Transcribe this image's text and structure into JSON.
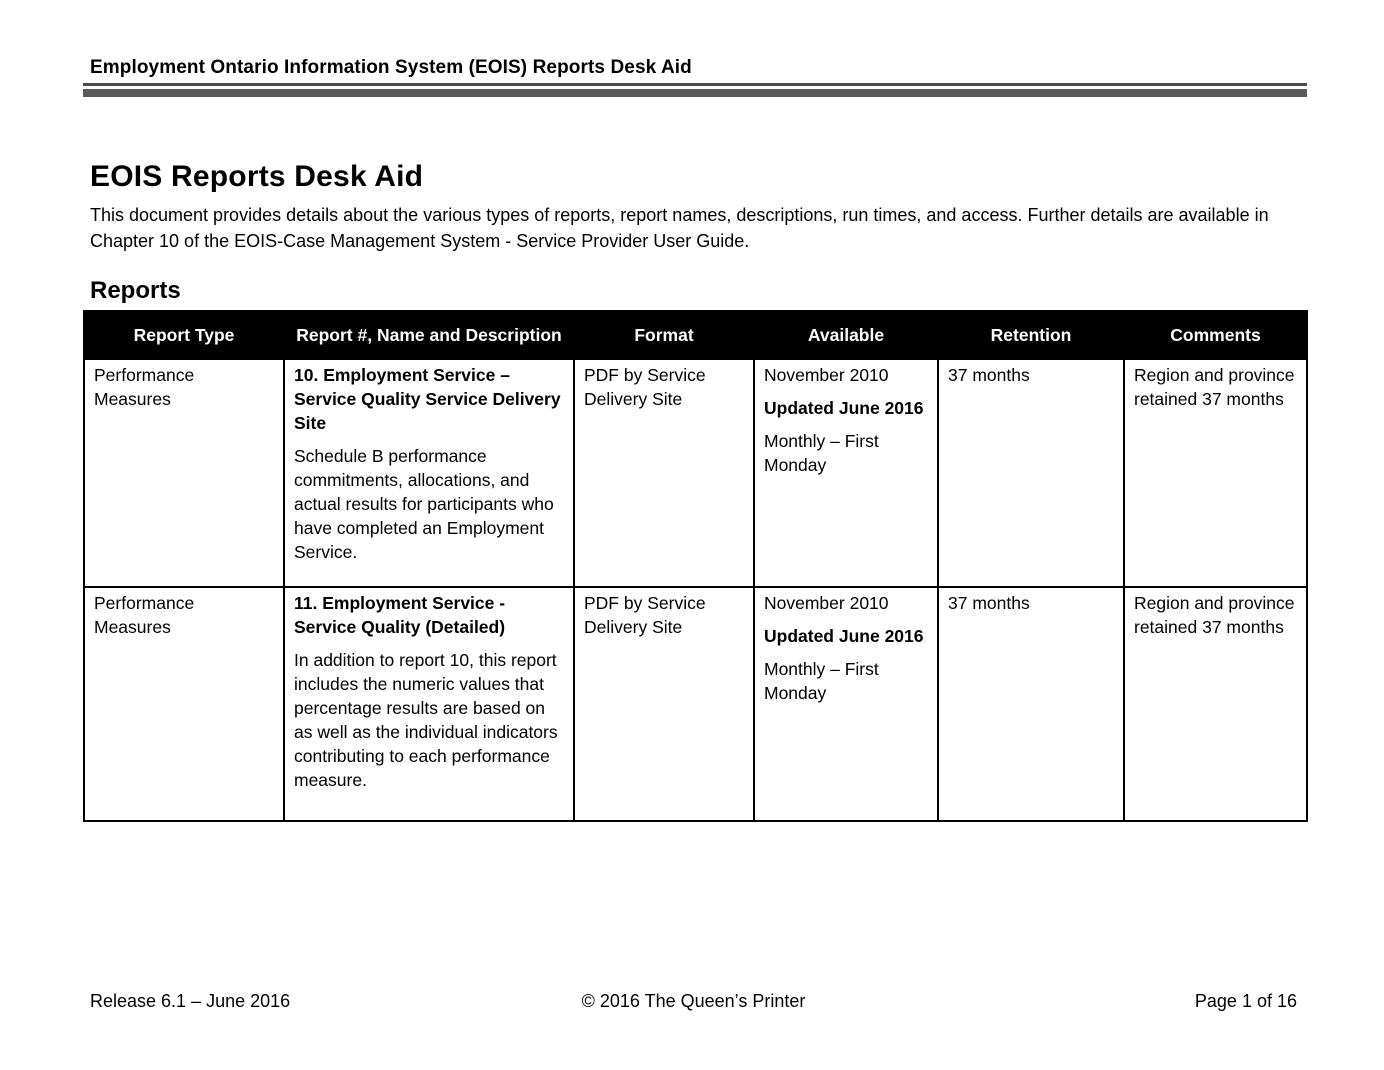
{
  "page_header": {
    "title": "Employment Ontario Information System (EOIS) Reports Desk Aid"
  },
  "document": {
    "title": "EOIS Reports Desk Aid",
    "intro": "This document provides details about the various types of reports, report names, descriptions, run times, and access. Further details are available in Chapter 10 of the EOIS-Case Management System - Service Provider User Guide.",
    "section_heading": "Reports"
  },
  "table": {
    "headers": [
      "Report Type",
      "Report #, Name and Description",
      "Format",
      "Available",
      "Retention",
      "Comments"
    ],
    "rows": [
      {
        "report_type": "Performance Measures",
        "title": "10. Employment Service – Service Quality Service Delivery Site",
        "description": "Schedule B performance commitments, allocations, and actual results for participants who have completed an Employment Service.",
        "format": "PDF by Service Delivery Site",
        "available_initial": "November 2010",
        "available_updated": "Updated June 2016",
        "available_frequency": "Monthly – First Monday",
        "retention": "37 months",
        "comments": "Region and province retained 37 months"
      },
      {
        "report_type": "Performance Measures",
        "title": "11. Employment Service - Service Quality (Detailed)",
        "description": "In addition to report 10, this report includes the numeric values that percentage results are based on as well as the individual indicators contributing to each performance measure.",
        "format": "PDF by Service Delivery Site",
        "available_initial": "November 2010",
        "available_updated": "Updated June 2016",
        "available_frequency": "Monthly – First Monday",
        "retention": "37 months",
        "comments": "Region and province retained 37 months"
      }
    ]
  },
  "footer": {
    "left": "Release 6.1 – June 2016",
    "center": "© 2016 The Queen’s Printer",
    "right": "Page 1 of 16"
  },
  "colors": {
    "table_header_bg": "#000000",
    "table_header_text": "#ffffff",
    "header_rule_gray": "#595959",
    "body_text": "#000000",
    "page_bg": "#ffffff"
  }
}
